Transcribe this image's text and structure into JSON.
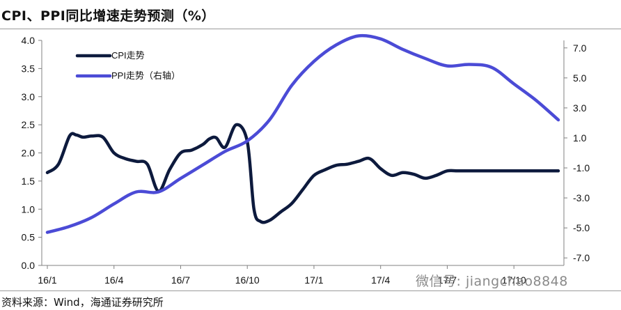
{
  "title": "CPI、PPI同比增速走势预测（%）",
  "source": "资料来源：Wind，海通证券研究所",
  "watermark": "微信号: jiangchao8848",
  "colors": {
    "cpi": "#0d1a3d",
    "ppi": "#4b4bd6",
    "axis": "#808080",
    "text": "#111111"
  },
  "chart_data": {
    "type": "line",
    "title": "CPI、PPI同比增速走势预测（%）",
    "x_ticks": [
      "16/1",
      "16/4",
      "16/7",
      "16/10",
      "17/1",
      "17/4",
      "17/7",
      "17/10"
    ],
    "y_left": {
      "ticks": [
        "4.0",
        "3.5",
        "3.0",
        "2.5",
        "2.0",
        "1.5",
        "1.0",
        "0.5",
        "0.0"
      ],
      "range": [
        0,
        4
      ]
    },
    "y_right": {
      "ticks": [
        "7.0",
        "5.0",
        "3.0",
        "1.0",
        "-1.0",
        "-3.0",
        "-5.0",
        "-7.0"
      ],
      "range": [
        -7.5,
        7.5
      ]
    },
    "legend_position": "top-left",
    "grid": false,
    "series": [
      {
        "name": "CPI走势",
        "axis": "left",
        "x": [
          0,
          0.5,
          1,
          1.3,
          1.6,
          2,
          2.5,
          3,
          3.5,
          4,
          4.5,
          5,
          5.5,
          6,
          6.5,
          7,
          7.3,
          7.6,
          8,
          8.5,
          9,
          9.3,
          9.6,
          10,
          10.5,
          11,
          11.5,
          12,
          12.5,
          13,
          13.5,
          14,
          14.5,
          15,
          15.5,
          16,
          16.5,
          17,
          17.5,
          18,
          18.5,
          19,
          19.5,
          20,
          20.5,
          21,
          21.5,
          22,
          22.5,
          23
        ],
        "y": [
          1.65,
          1.8,
          2.3,
          2.32,
          2.28,
          2.3,
          2.28,
          2.0,
          1.9,
          1.85,
          1.8,
          1.32,
          1.7,
          2.0,
          2.05,
          2.15,
          2.25,
          2.27,
          2.1,
          2.5,
          2.2,
          1.0,
          0.78,
          0.8,
          0.95,
          1.1,
          1.35,
          1.6,
          1.7,
          1.78,
          1.8,
          1.85,
          1.9,
          1.72,
          1.6,
          1.65,
          1.62,
          1.55,
          1.6,
          1.68,
          1.68,
          1.68,
          1.68,
          1.68,
          1.68,
          1.68,
          1.68,
          1.68,
          1.68,
          1.68
        ]
      },
      {
        "name": "PPI走势（右轴）",
        "axis": "right",
        "x": [
          0,
          1,
          2,
          3,
          4,
          5,
          6,
          7,
          8,
          9,
          10,
          11,
          12,
          13,
          14,
          15,
          16,
          17,
          18,
          19,
          20,
          21,
          22,
          23
        ],
        "y": [
          -5.3,
          -4.9,
          -4.3,
          -3.4,
          -2.6,
          -2.6,
          -1.7,
          -0.8,
          0.1,
          0.8,
          2.2,
          4.5,
          6.1,
          7.2,
          7.8,
          7.6,
          6.9,
          6.3,
          5.8,
          5.9,
          5.7,
          4.6,
          3.5,
          2.2
        ]
      }
    ]
  }
}
